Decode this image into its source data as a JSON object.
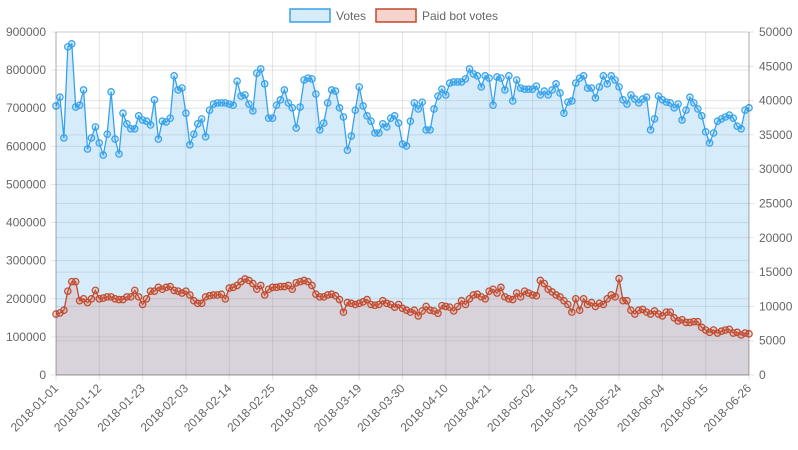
{
  "chart_data": {
    "type": "line",
    "fill": "area",
    "legend_position": "top",
    "grid": true,
    "x_tick_labels": [
      "2018-01-01",
      "2018-01-12",
      "2018-01-23",
      "2018-02-03",
      "2018-02-14",
      "2018-02-25",
      "2018-03-08",
      "2018-03-19",
      "2018-03-30",
      "2018-04-10",
      "2018-04-21",
      "2018-05-02",
      "2018-05-13",
      "2018-05-24",
      "2018-06-04",
      "2018-06-15",
      "2018-06-26"
    ],
    "x_range": [
      "2018-01-01",
      "2018-06-26"
    ],
    "y_left": {
      "min": 0,
      "max": 900000,
      "step": 100000,
      "ticks": [
        "0",
        "100000",
        "200000",
        "300000",
        "400000",
        "500000",
        "600000",
        "700000",
        "800000",
        "900000"
      ]
    },
    "y_right": {
      "min": 0,
      "max": 50000,
      "step": 5000,
      "ticks": [
        "0",
        "5000",
        "10000",
        "15000",
        "20000",
        "25000",
        "30000",
        "35000",
        "40000",
        "45000",
        "50000"
      ]
    },
    "series": [
      {
        "name": "Votes",
        "color": "#36a2eb",
        "fill": "rgba(54,162,235,0.2)",
        "values": [
          706000,
          729000,
          622000,
          861000,
          869000,
          703000,
          708000,
          748000,
          593000,
          622000,
          651000,
          609000,
          577000,
          632000,
          743000,
          619000,
          580000,
          687000,
          659000,
          646000,
          646000,
          680000,
          669000,
          666000,
          656000,
          722000,
          619000,
          666000,
          664000,
          674000,
          785000,
          748000,
          753000,
          687000,
          604000,
          632000,
          659000,
          672000,
          625000,
          695000,
          711000,
          714000,
          714000,
          714000,
          711000,
          708000,
          771000,
          732000,
          735000,
          711000,
          693000,
          792000,
          803000,
          764000,
          674000,
          674000,
          708000,
          722000,
          748000,
          714000,
          701000,
          648000,
          703000,
          774000,
          779000,
          777000,
          737000,
          643000,
          661000,
          714000,
          748000,
          745000,
          701000,
          677000,
          590000,
          627000,
          695000,
          756000,
          706000,
          680000,
          666000,
          635000,
          635000,
          659000,
          651000,
          674000,
          680000,
          661000,
          606000,
          601000,
          666000,
          714000,
          698000,
          716000,
          643000,
          643000,
          698000,
          732000,
          750000,
          735000,
          766000,
          769000,
          769000,
          769000,
          777000,
          803000,
          790000,
          785000,
          756000,
          785000,
          779000,
          708000,
          782000,
          779000,
          748000,
          785000,
          719000,
          774000,
          753000,
          750000,
          750000,
          750000,
          758000,
          735000,
          745000,
          735000,
          748000,
          764000,
          740000,
          687000,
          716000,
          719000,
          766000,
          779000,
          785000,
          753000,
          753000,
          727000,
          756000,
          785000,
          764000,
          785000,
          774000,
          756000,
          722000,
          711000,
          735000,
          724000,
          714000,
          724000,
          729000,
          643000,
          672000,
          732000,
          722000,
          716000,
          714000,
          701000,
          711000,
          669000,
          695000,
          729000,
          714000,
          698000,
          680000,
          638000,
          609000,
          635000,
          666000,
          672000,
          677000,
          682000,
          674000,
          653000,
          646000,
          695000,
          701000
        ]
      },
      {
        "name": "Paid bot votes",
        "color": "#c0492b",
        "fill": "rgba(220,110,90,0.2)",
        "values": [
          160000,
          163000,
          170000,
          220000,
          245000,
          245000,
          195000,
          200000,
          190000,
          200000,
          222000,
          200000,
          202000,
          205000,
          205000,
          200000,
          198000,
          198000,
          205000,
          205000,
          222000,
          205000,
          185000,
          200000,
          220000,
          220000,
          230000,
          225000,
          230000,
          232000,
          222000,
          220000,
          215000,
          220000,
          210000,
          195000,
          188000,
          188000,
          205000,
          208000,
          210000,
          210000,
          212000,
          200000,
          228000,
          230000,
          235000,
          245000,
          252000,
          248000,
          240000,
          225000,
          235000,
          210000,
          225000,
          230000,
          230000,
          232000,
          232000,
          235000,
          225000,
          242000,
          245000,
          248000,
          245000,
          235000,
          212000,
          205000,
          205000,
          210000,
          212000,
          208000,
          198000,
          165000,
          190000,
          188000,
          185000,
          188000,
          192000,
          198000,
          185000,
          183000,
          185000,
          195000,
          188000,
          185000,
          178000,
          185000,
          175000,
          170000,
          165000,
          170000,
          155000,
          168000,
          180000,
          170000,
          168000,
          162000,
          182000,
          180000,
          178000,
          168000,
          180000,
          195000,
          185000,
          200000,
          210000,
          212000,
          205000,
          200000,
          220000,
          225000,
          215000,
          230000,
          205000,
          200000,
          198000,
          215000,
          205000,
          220000,
          215000,
          210000,
          208000,
          248000,
          240000,
          225000,
          218000,
          210000,
          205000,
          195000,
          185000,
          165000,
          200000,
          170000,
          200000,
          185000,
          190000,
          180000,
          188000,
          185000,
          200000,
          210000,
          205000,
          253000,
          195000,
          195000,
          170000,
          160000,
          170000,
          172000,
          165000,
          160000,
          168000,
          160000,
          155000,
          165000,
          165000,
          150000,
          142000,
          145000,
          138000,
          138000,
          140000,
          140000,
          125000,
          118000,
          112000,
          118000,
          110000,
          115000,
          118000,
          120000,
          110000,
          112000,
          105000,
          110000,
          108000
        ]
      }
    ]
  }
}
